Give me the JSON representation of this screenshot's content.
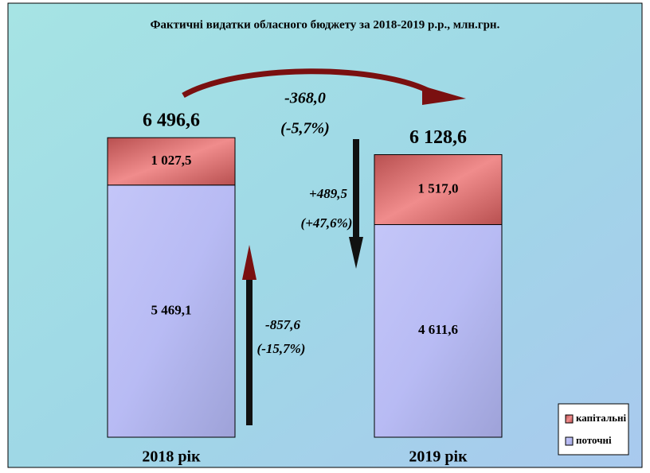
{
  "chart_data": {
    "type": "stacked_bar",
    "title": "Фактичні видатки обласного бюджету за 2018-2019 р.р., млн.грн.",
    "categories": [
      "2018 рік",
      "2019 рік"
    ],
    "series": [
      {
        "name": "поточні",
        "color": "#b9bcf2",
        "values": [
          5469.1,
          4611.6
        ],
        "value_labels": [
          "5 469,1",
          "4 611,6"
        ]
      },
      {
        "name": "капітальні",
        "color": "#c46262",
        "values": [
          1027.5,
          1517.0
        ],
        "value_labels": [
          "1 027,5",
          "1 517,0"
        ]
      }
    ],
    "totals": [
      6496.6,
      6128.6
    ],
    "total_labels": [
      "6 496,6",
      "6 128,6"
    ],
    "annotations": {
      "total_change": "-368,0",
      "total_change_pct": "(-5,7%)",
      "capital_change": "+489,5",
      "capital_change_pct": "(+47,6%)",
      "current_change": "-857,6",
      "current_change_pct": "(-15,7%)"
    },
    "legend": "lower right"
  }
}
